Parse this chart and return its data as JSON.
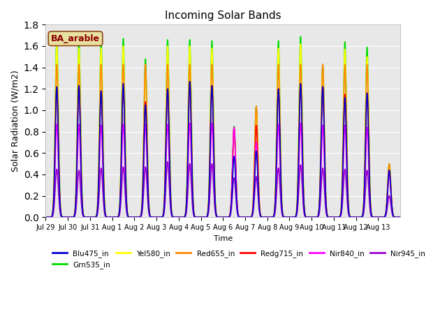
{
  "title": "Incoming Solar Bands",
  "xlabel": "Time",
  "ylabel": "Solar Radiation (W/m2)",
  "ylim": [
    0,
    1.8
  ],
  "fig_bg": "#ffffff",
  "plot_bg": "#e8e8e8",
  "annotation_text": "BA_arable",
  "annotation_color": "#8B0000",
  "annotation_bg": "#e8e0a0",
  "series": [
    {
      "name": "Blu475_in",
      "color": "#0000cc",
      "lw": 1.2
    },
    {
      "name": "Grn535_in",
      "color": "#00dd00",
      "lw": 1.2
    },
    {
      "name": "Yel580_in",
      "color": "#ffff00",
      "lw": 1.2
    },
    {
      "name": "Red655_in",
      "color": "#ff8800",
      "lw": 1.2
    },
    {
      "name": "Redg715_in",
      "color": "#ff0000",
      "lw": 1.2
    },
    {
      "name": "Nir840_in",
      "color": "#ff00ff",
      "lw": 1.2
    },
    {
      "name": "Nir945_in",
      "color": "#9900cc",
      "lw": 1.2
    }
  ],
  "tick_labels": [
    "Jul 29",
    "Jul 30",
    "Jul 31",
    "Aug 1",
    "Aug 2",
    "Aug 3",
    "Aug 4",
    "Aug 5",
    "Aug 6",
    "Aug 7",
    "Aug 8",
    "Aug 9",
    "Aug 10",
    "Aug 11",
    "Aug 12",
    "Aug 13"
  ],
  "n_days": 16,
  "points_per_day": 200,
  "grn_peaks": [
    1.69,
    1.65,
    1.65,
    1.67,
    1.48,
    1.66,
    1.66,
    1.65,
    0.85,
    1.04,
    1.65,
    1.69,
    1.43,
    1.64,
    1.59,
    0.5
  ],
  "yel_peaks": [
    1.6,
    1.58,
    1.58,
    1.6,
    1.38,
    1.6,
    1.6,
    1.58,
    0.8,
    1.0,
    1.58,
    1.62,
    1.38,
    1.57,
    1.5,
    0.47
  ],
  "red_peaks": [
    1.43,
    1.43,
    1.43,
    1.43,
    1.43,
    1.43,
    1.43,
    1.43,
    0.83,
    1.04,
    1.43,
    1.43,
    1.43,
    1.43,
    1.43,
    0.5
  ],
  "redg_peaks": [
    1.2,
    1.23,
    1.18,
    1.2,
    1.08,
    1.2,
    1.27,
    1.23,
    0.84,
    0.86,
    1.2,
    1.25,
    1.22,
    1.15,
    1.16,
    0.44
  ],
  "blu_peaks": [
    1.22,
    1.23,
    1.18,
    1.25,
    1.05,
    1.2,
    1.27,
    1.23,
    0.57,
    0.62,
    1.2,
    1.25,
    1.22,
    1.12,
    1.16,
    0.44
  ],
  "nir840_peaks": [
    0.87,
    0.87,
    0.86,
    0.87,
    0.87,
    0.87,
    0.88,
    0.88,
    0.84,
    0.7,
    0.87,
    0.88,
    0.86,
    0.86,
    0.84,
    0.4
  ],
  "nir945_peaks": [
    0.45,
    0.44,
    0.46,
    0.47,
    0.47,
    0.52,
    0.5,
    0.5,
    0.37,
    0.38,
    0.46,
    0.49,
    0.46,
    0.45,
    0.44,
    0.2
  ],
  "sigma": 0.07
}
